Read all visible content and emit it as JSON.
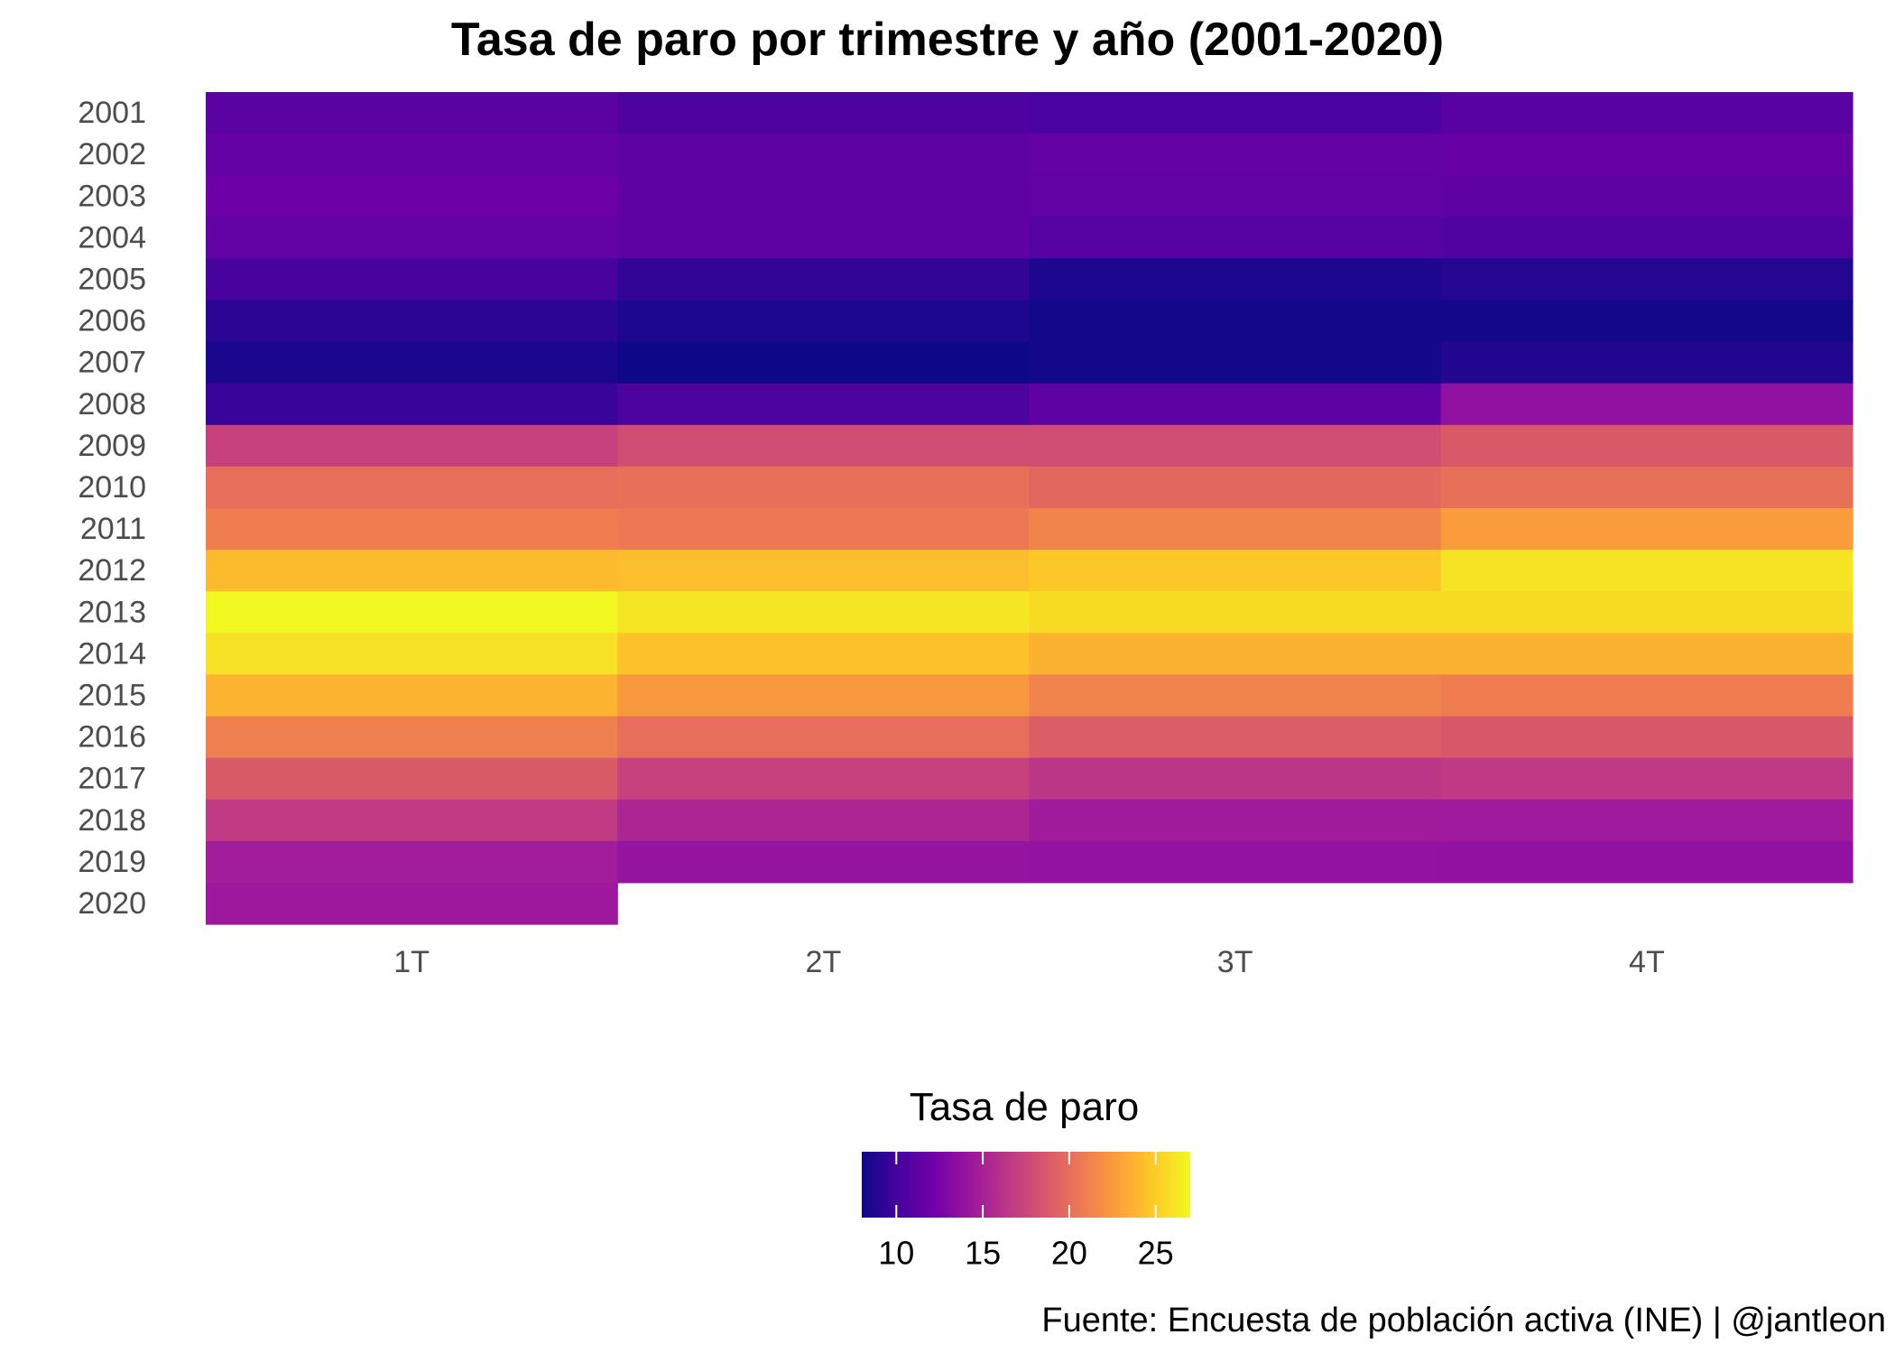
{
  "title": "Tasa de paro por trimestre y año (2001-2020)",
  "subtitle": "",
  "legend": {
    "title": "Tasa de paro",
    "ticks": [
      10,
      15,
      20,
      25
    ],
    "min": 8,
    "max": 27
  },
  "caption": "Fuente: Encuesta de población activa (INE) | @jantleon",
  "colors": {
    "scale": [
      "#0d0887",
      "#46039f",
      "#7201a8",
      "#9c179e",
      "#bd3786",
      "#d8576b",
      "#ed7953",
      "#fb9f3a",
      "#fdca26",
      "#f0f921"
    ],
    "axis_text": "#4d4d4d"
  },
  "chart_data": {
    "type": "heatmap",
    "title": "Tasa de paro por trimestre y año (2001-2020)",
    "xlabel": "",
    "ylabel": "",
    "x": [
      "1T",
      "2T",
      "3T",
      "4T"
    ],
    "y": [
      "2001",
      "2002",
      "2003",
      "2004",
      "2005",
      "2006",
      "2007",
      "2008",
      "2009",
      "2010",
      "2011",
      "2012",
      "2013",
      "2014",
      "2015",
      "2016",
      "2017",
      "2018",
      "2019",
      "2020"
    ],
    "values": [
      [
        11.1,
        10.5,
        10.3,
        11.0
      ],
      [
        11.6,
        11.3,
        11.6,
        11.7
      ],
      [
        12.0,
        11.3,
        11.4,
        11.3
      ],
      [
        11.5,
        11.3,
        10.9,
        10.6
      ],
      [
        10.2,
        9.4,
        8.6,
        8.9
      ],
      [
        9.1,
        8.6,
        8.2,
        8.3
      ],
      [
        8.5,
        8.0,
        8.2,
        8.8
      ],
      [
        9.6,
        10.4,
        11.3,
        13.8
      ],
      [
        17.2,
        17.9,
        17.9,
        18.7
      ],
      [
        20.0,
        20.1,
        19.6,
        20.1
      ],
      [
        20.9,
        20.6,
        21.3,
        22.6
      ],
      [
        24.1,
        24.3,
        24.8,
        26.0
      ],
      [
        26.9,
        26.1,
        25.7,
        25.7
      ],
      [
        25.9,
        24.5,
        23.7,
        23.7
      ],
      [
        23.8,
        22.4,
        21.2,
        20.9
      ],
      [
        21.0,
        20.0,
        18.9,
        18.6
      ],
      [
        18.8,
        17.2,
        16.4,
        16.6
      ],
      [
        16.7,
        15.3,
        14.6,
        14.5
      ],
      [
        14.7,
        14.0,
        13.9,
        13.8
      ],
      [
        14.4,
        null,
        null,
        null
      ]
    ],
    "colorbar": {
      "label": "Tasa de paro",
      "range": [
        8,
        27
      ],
      "ticks": [
        10,
        15,
        20,
        25
      ]
    },
    "grid": false,
    "legend_position": "bottom"
  }
}
